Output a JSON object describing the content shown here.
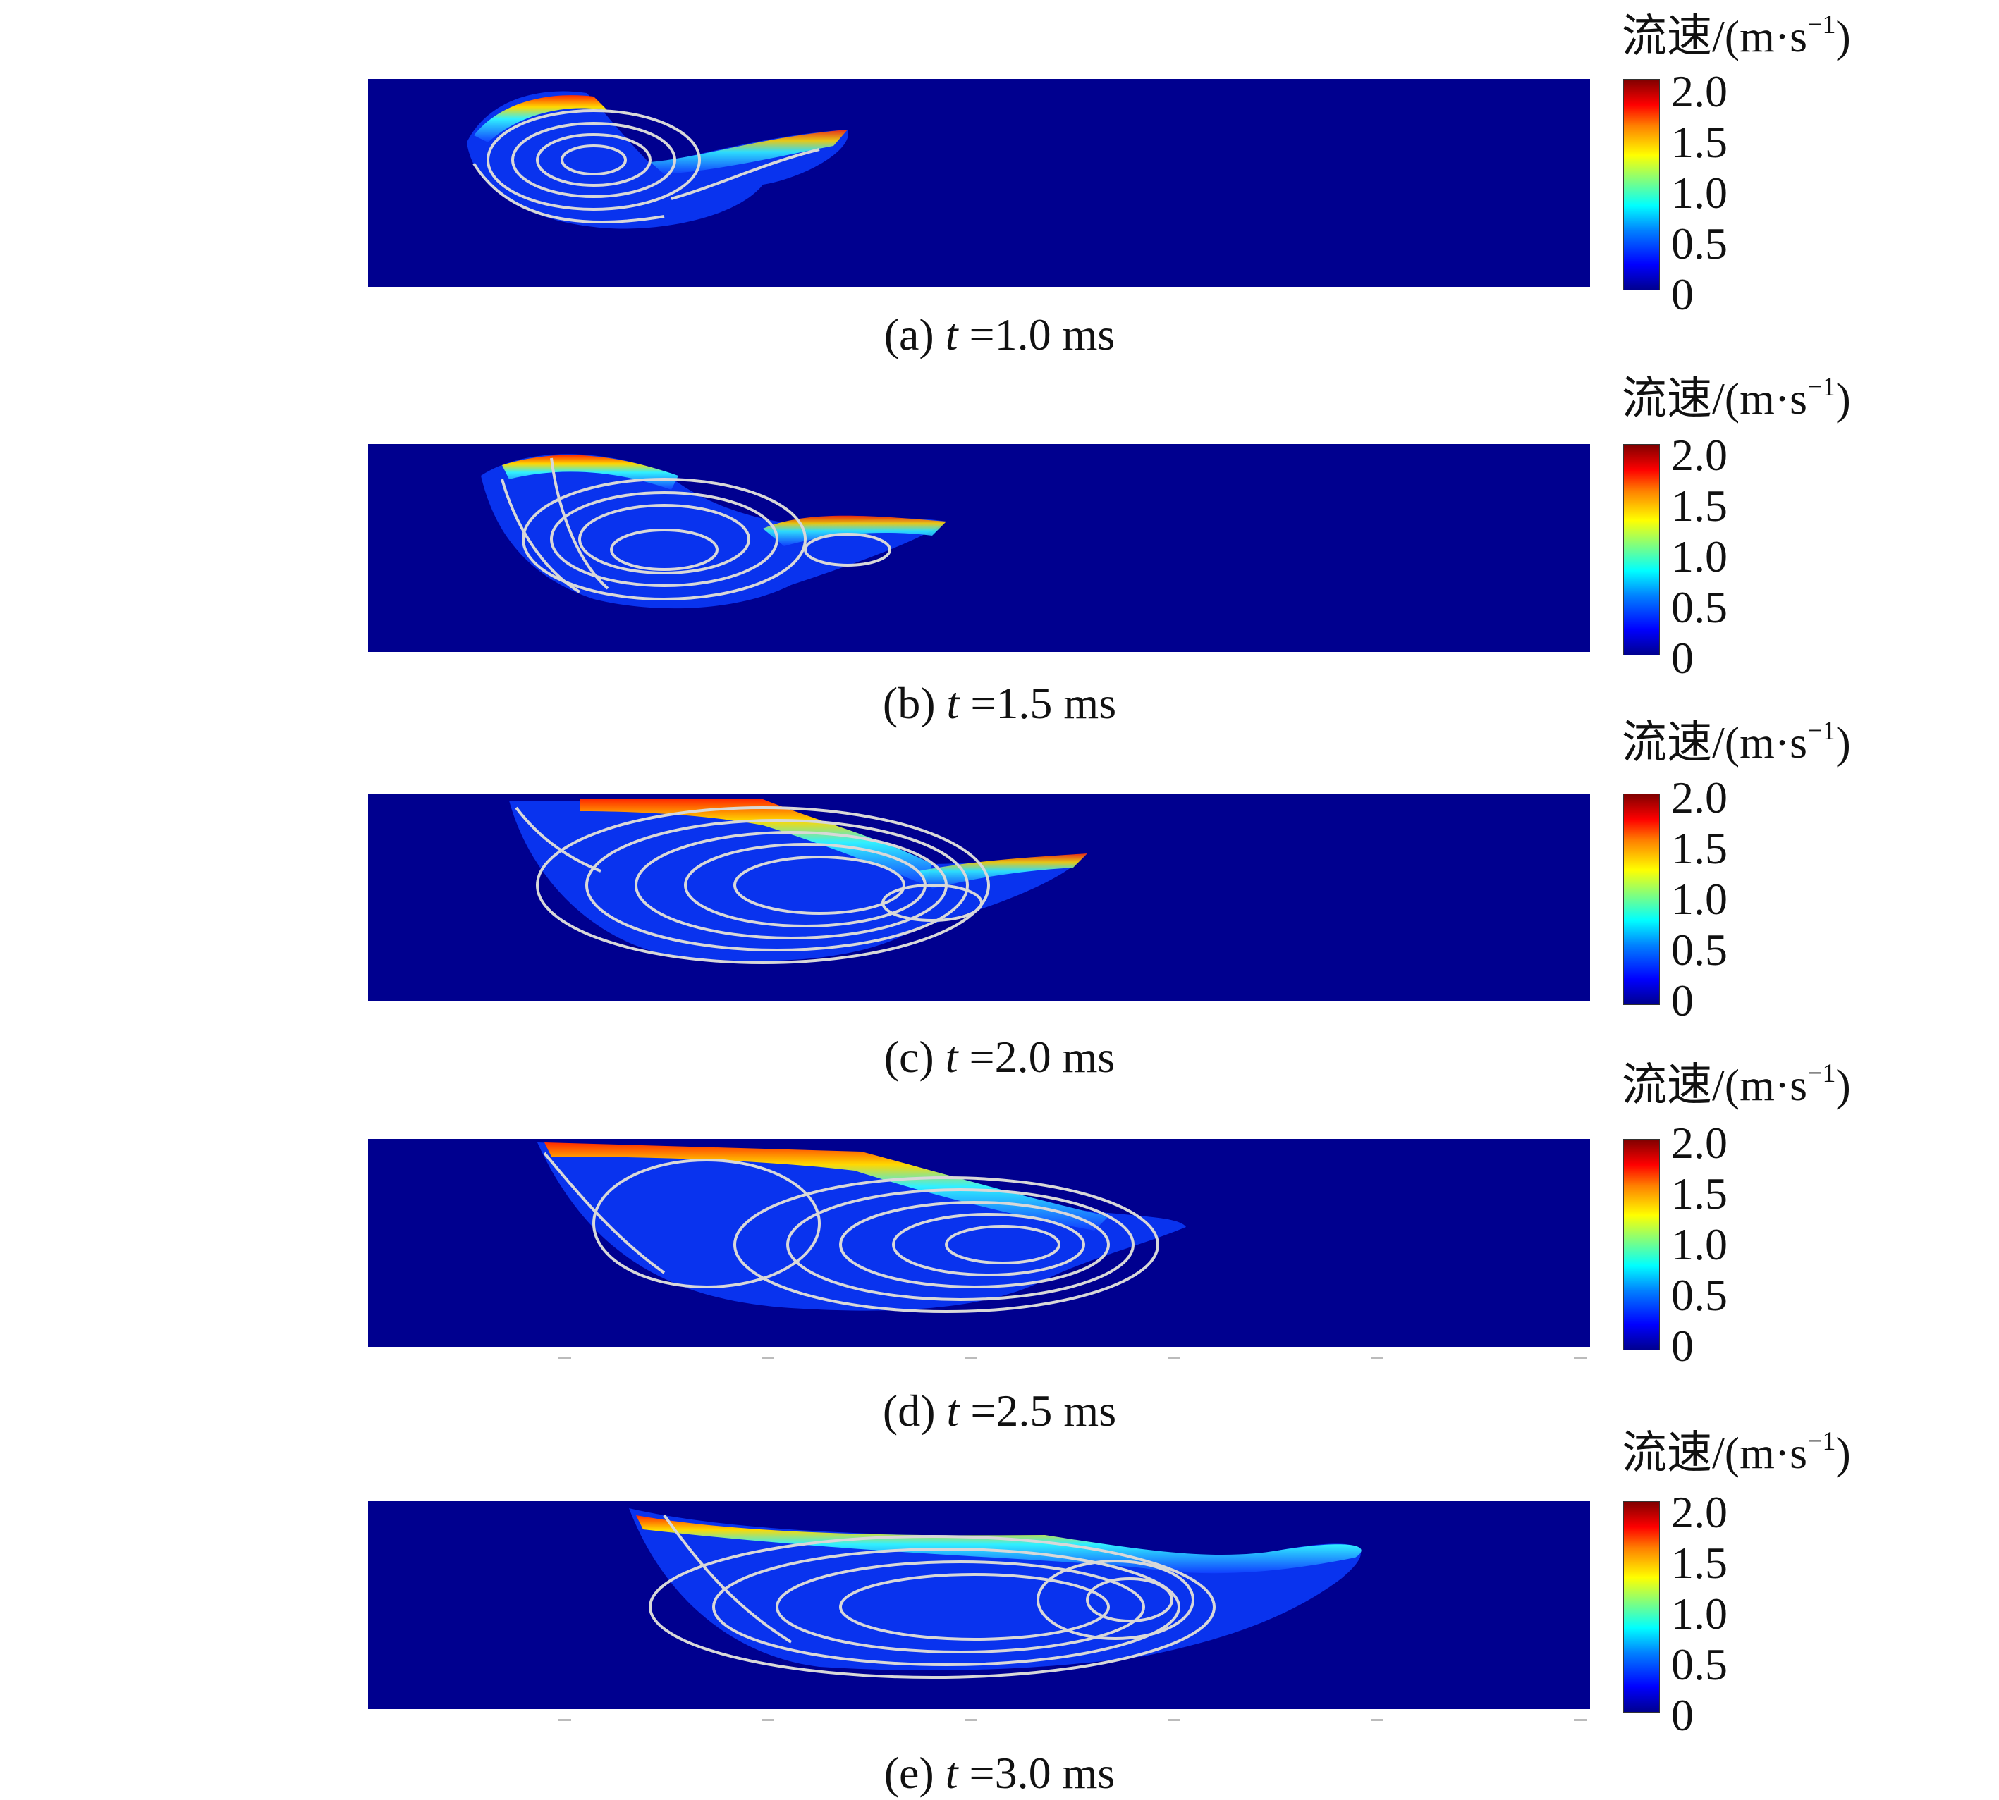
{
  "colorbar": {
    "title": "流速/(m·s",
    "title_sup": "−1",
    "title_close": ")",
    "ticks": [
      "2.0",
      "1.5",
      "1.0",
      "0.5",
      "0"
    ],
    "colors": [
      "#00008f",
      "#0000ff",
      "#0080ff",
      "#00ffff",
      "#7fff7f",
      "#ffff00",
      "#ff8000",
      "#ff0000",
      "#800000"
    ]
  },
  "background_color": "#00008f",
  "streamline_color": "#d8d8d8",
  "panels": [
    {
      "label": "(a)",
      "var": "t",
      "eq": " =1.0 ms"
    },
    {
      "label": "(b)",
      "var": "t",
      "eq": " =1.5 ms"
    },
    {
      "label": "(c)",
      "var": "t",
      "eq": " =2.0 ms"
    },
    {
      "label": "(d)",
      "var": "t",
      "eq": " =2.5 ms"
    },
    {
      "label": "(e)",
      "var": "t",
      "eq": " =3.0 ms"
    }
  ]
}
